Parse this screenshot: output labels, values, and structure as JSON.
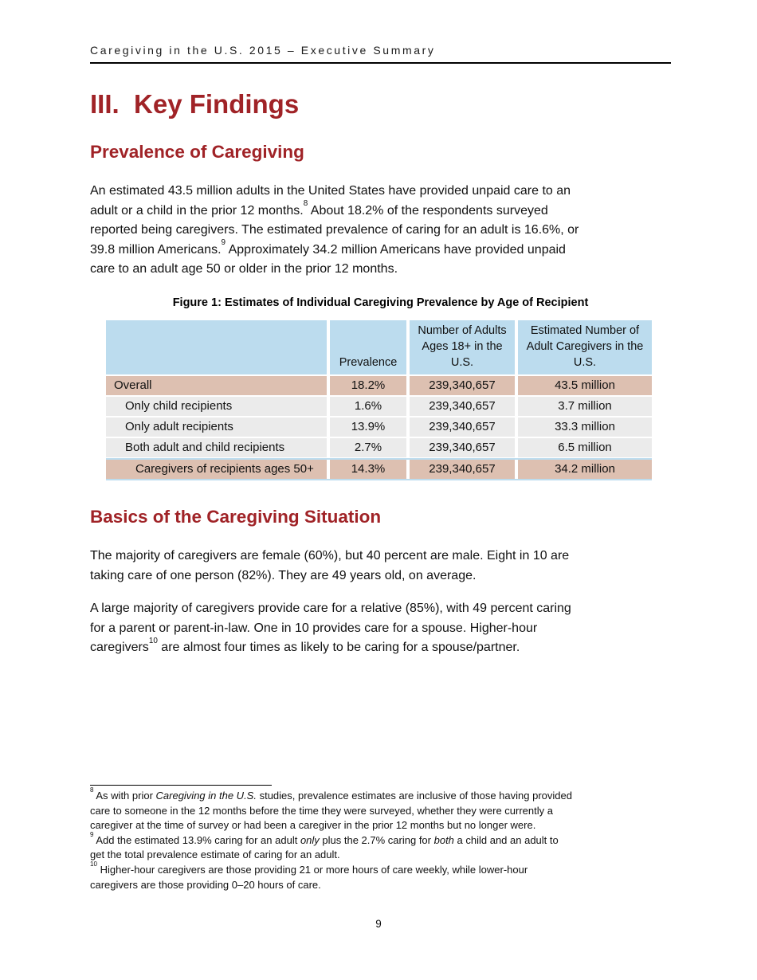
{
  "colors": {
    "heading_red": "#A02327",
    "table_header_blue": "#BCDCEE",
    "row_pink": "#DDC0B1",
    "row_gray": "#EBEBEB"
  },
  "page": {
    "running_header": "Caregiving in the U.S. 2015 – Executive Summary",
    "page_number": "9"
  },
  "headings": {
    "main": "III.  Key Findings",
    "section1": "Prevalence of Caregiving",
    "section2": "Basics of the Caregiving Situation"
  },
  "paragraphs": {
    "p1": [
      {
        "t": "An estimated 43.5 million adults in the United States have provided unpaid care to an\nadult or a child in the prior 12 months."
      },
      {
        "t": "8",
        "s": "sup"
      },
      {
        "t": " About 18.2% of the respondents surveyed\nreported being caregivers. The estimated prevalence of caring for an adult is 16.6%, or\n39.8 million Americans."
      },
      {
        "t": "9",
        "s": "sup"
      },
      {
        "t": " Approximately 34.2 million Americans have provided unpaid\ncare to an adult age 50 or older in the prior 12 months."
      }
    ],
    "p2": [
      {
        "t": "The majority of caregivers are female (60%), but 40 percent are male. Eight in 10 are\ntaking care of one person (82%). They are 49 years old, on average."
      }
    ],
    "p3": [
      {
        "t": "A large majority of caregivers provide care for a relative (85%), with 49 percent caring\nfor a parent or parent-in-law. One in 10 provides care for a spouse. Higher-hour\ncaregivers"
      },
      {
        "t": "10",
        "s": "sup"
      },
      {
        "t": " are almost four times as likely to be caring for a spouse/partner."
      }
    ]
  },
  "table": {
    "caption": "Figure 1: Estimates of Individual Caregiving Prevalence by Age of Recipient",
    "columns": [
      "",
      "Prevalence",
      "Number of Adults Ages 18+ in the U.S.",
      "Estimated Number of Adult Caregivers in the U.S."
    ],
    "rows": [
      {
        "label": "Overall",
        "prevalence": "18.2%",
        "adults": "239,340,657",
        "caregivers": "43.5 million",
        "style": "highlight",
        "indent": 0
      },
      {
        "label": "Only child recipients",
        "prevalence": "1.6%",
        "adults": "239,340,657",
        "caregivers": "3.7 million",
        "style": "normal",
        "indent": 1
      },
      {
        "label": "Only adult recipients",
        "prevalence": "13.9%",
        "adults": "239,340,657",
        "caregivers": "33.3 million",
        "style": "normal",
        "indent": 1
      },
      {
        "label": "Both adult and child recipients",
        "prevalence": "2.7%",
        "adults": "239,340,657",
        "caregivers": "6.5 million",
        "style": "normal",
        "indent": 1
      },
      {
        "label": "Caregivers of recipients ages 50+",
        "prevalence": "14.3%",
        "adults": "239,340,657",
        "caregivers": "34.2 million",
        "style": "highlight",
        "indent": 2
      }
    ]
  },
  "footnotes": [
    {
      "parts": [
        {
          "t": "8",
          "s": "sup"
        },
        {
          "t": " As with prior "
        },
        {
          "t": "Caregiving in the U.S.",
          "s": "i"
        },
        {
          "t": " studies, prevalence estimates are inclusive of those having provided\ncare to someone in the 12 months before the time they were surveyed, whether they were currently a\ncaregiver at the time of survey or had been a caregiver in the prior 12 months but no longer were."
        }
      ]
    },
    {
      "parts": [
        {
          "t": "9",
          "s": "sup"
        },
        {
          "t": " Add the estimated 13.9% caring for an adult "
        },
        {
          "t": "only",
          "s": "i"
        },
        {
          "t": " plus the 2.7% caring for "
        },
        {
          "t": "both",
          "s": "i"
        },
        {
          "t": " a child and an adult to\nget the total prevalence estimate of caring for an adult."
        }
      ]
    },
    {
      "parts": [
        {
          "t": "10",
          "s": "sup"
        },
        {
          "t": " Higher-hour caregivers are those providing 21 or more hours of care weekly, while lower-hour\ncaregivers are those providing 0–20 hours of care."
        }
      ]
    }
  ]
}
